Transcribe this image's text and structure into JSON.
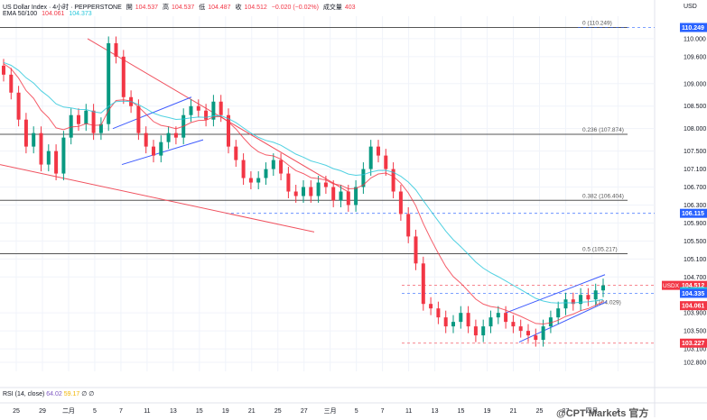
{
  "header": {
    "symbol": "US Dollar Index · 4小时 · PEPPERSTONE",
    "open_label": "開",
    "open": "104.537",
    "high_label": "高",
    "high": "104.537",
    "low_label": "低",
    "low": "104.487",
    "close_label": "收",
    "close": "104.512",
    "change": "−0.020 (−0.02%)",
    "volume_label": "成交量",
    "volume": "403"
  },
  "ema": {
    "label": "EMA 50/100",
    "v50": "104.061",
    "v100": "104.373"
  },
  "rsi": {
    "label": "RSI (14, close)",
    "v1": "64.02",
    "v2": "59.17",
    "z1": "∅",
    "z2": "∅"
  },
  "currency": "USD",
  "watermark": "@CPT Markets 官方",
  "colors": {
    "up": "#089981",
    "down": "#f23645",
    "ema50": "#f23645",
    "ema100": "#26c6da",
    "channel_red": "#f0525f",
    "channel_blue": "#3d5afe",
    "fib": "#555555"
  },
  "chart_data": {
    "type": "candlestick",
    "ylim": [
      102.6,
      110.5
    ],
    "price_ticks": [
      "110.000",
      "109.600",
      "109.000",
      "108.500",
      "108.000",
      "107.500",
      "107.100",
      "106.700",
      "106.300",
      "105.900",
      "105.500",
      "105.100",
      "104.700",
      "103.900",
      "103.500",
      "103.100",
      "102.800"
    ],
    "x_ticks": [
      "25",
      "29",
      "二月",
      "5",
      "7",
      "11",
      "13",
      "15",
      "19",
      "21",
      "25",
      "27",
      "三月",
      "5",
      "7",
      "11",
      "13",
      "15",
      "19",
      "21",
      "25",
      "27",
      "四月",
      "3"
    ],
    "fib_levels": [
      {
        "label": "0 (110.249)",
        "value": 110.249
      },
      {
        "label": "0.236 (107.874)",
        "value": 107.874
      },
      {
        "label": "0.382 (106.404)",
        "value": 106.404
      },
      {
        "label": "0.5 (105.217)",
        "value": 105.217
      },
      {
        "label": "(104.029)",
        "value": 104.029
      }
    ],
    "price_badges": [
      {
        "symbol": "USDX",
        "value": "104.512",
        "color": "#f23645"
      },
      {
        "value": "110.249",
        "color": "#2962ff"
      },
      {
        "value": "106.115",
        "color": "#2962ff"
      },
      {
        "value": "104.373",
        "color": "#26c6da"
      },
      {
        "value": "104.335",
        "color": "#2962ff"
      },
      {
        "value": "104.061",
        "color": "#f23645"
      },
      {
        "value": "103.227",
        "color": "#f23645"
      }
    ],
    "closes": [
      109.2,
      108.8,
      108.2,
      107.6,
      107.9,
      107.2,
      107.5,
      107.0,
      107.8,
      108.3,
      108.1,
      108.4,
      107.9,
      108.1,
      109.9,
      109.6,
      108.7,
      108.5,
      107.9,
      107.6,
      107.4,
      107.7,
      107.9,
      107.8,
      108.3,
      108.5,
      108.4,
      108.2,
      108.6,
      108.3,
      107.6,
      107.3,
      106.9,
      106.8,
      106.9,
      107.1,
      107.3,
      107.0,
      106.6,
      106.5,
      106.7,
      106.5,
      106.8,
      106.7,
      106.4,
      106.6,
      106.3,
      106.7,
      107.1,
      107.6,
      107.4,
      107.1,
      106.6,
      106.1,
      105.6,
      105.0,
      104.1,
      104.0,
      103.8,
      103.6,
      103.7,
      103.9,
      103.6,
      103.4,
      103.6,
      103.8,
      103.9,
      103.7,
      103.6,
      103.5,
      103.4,
      103.3,
      103.6,
      103.8,
      104.0,
      104.2,
      104.1,
      104.3,
      104.2,
      104.4,
      104.512
    ]
  }
}
